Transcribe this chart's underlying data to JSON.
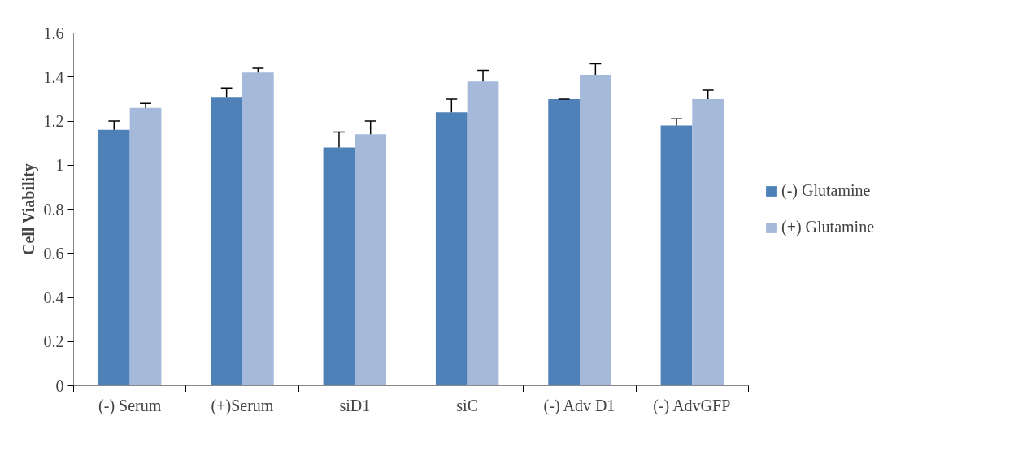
{
  "chart_data": {
    "type": "bar",
    "ylabel": "Cell Viability",
    "categories": [
      "(-) Serum",
      "(+)Serum",
      "siD1",
      "siC",
      "(-) Adv D1",
      "(-) AdvGFP"
    ],
    "series": [
      {
        "name": "(-) Glutamine",
        "color": "#4f81b9",
        "values": [
          1.16,
          1.31,
          1.08,
          1.24,
          1.3,
          1.18
        ],
        "errors": [
          [
            1.16,
            1.2
          ],
          [
            1.31,
            1.35
          ],
          [
            1.08,
            1.15
          ],
          [
            1.24,
            1.3
          ],
          [
            1.3,
            1.3
          ],
          [
            1.18,
            1.21
          ]
        ]
      },
      {
        "name": "(+) Glutamine",
        "color": "#a5b9da",
        "values": [
          1.26,
          1.42,
          1.14,
          1.38,
          1.41,
          1.3
        ],
        "errors": [
          [
            1.26,
            1.28
          ],
          [
            1.42,
            1.44
          ],
          [
            1.14,
            1.2
          ],
          [
            1.38,
            1.43
          ],
          [
            1.41,
            1.46
          ],
          [
            1.3,
            1.34
          ]
        ]
      }
    ],
    "ylim": [
      0,
      1.6
    ],
    "yticks": [
      0,
      {
        "value": 0.2,
        "label": "0.2"
      },
      {
        "value": 0.4,
        "label": "0.4"
      },
      {
        "value": 0.6,
        "label": "0.6"
      },
      {
        "value": 0.8,
        "label": "0.8"
      },
      1,
      {
        "value": 1.2,
        "label": "1.2"
      },
      {
        "value": 1.4,
        "label": "1.4"
      },
      {
        "value": 1.6,
        "label": "1.6"
      }
    ],
    "grid": false,
    "legend": "right"
  }
}
